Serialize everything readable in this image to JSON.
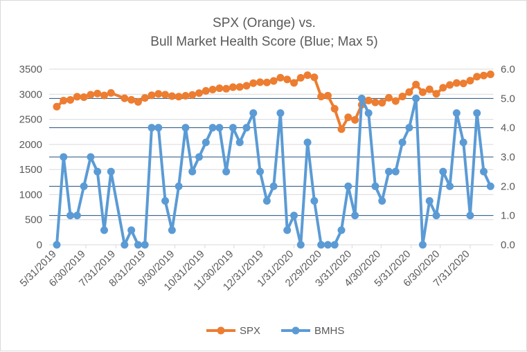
{
  "chart_data": {
    "type": "line",
    "title_lines": [
      "SPX (Orange) vs.",
      "Bull Market Health Score (Blue; Max 5)"
    ],
    "x_tick_labels": [
      "5/31/2019",
      "6/30/2019",
      "7/31/2019",
      "8/31/2019",
      "9/30/2019",
      "10/31/2019",
      "11/30/2019",
      "12/31/2019",
      "1/31/2020",
      "2/29/2020",
      "3/31/2020",
      "4/30/2020",
      "5/31/2020",
      "6/30/2020",
      "7/31/2020"
    ],
    "x_range": [
      "2019-05-31",
      "2020-08-24"
    ],
    "y_left": {
      "range": [
        0,
        3500
      ],
      "ticks": [
        "0",
        "500",
        "1000",
        "1500",
        "2000",
        "2500",
        "3000",
        "3500"
      ]
    },
    "y_right": {
      "range": [
        0,
        6
      ],
      "ticks": [
        "0.0",
        "1.0",
        "2.0",
        "3.0",
        "4.0",
        "5.0",
        "6.0"
      ]
    },
    "grid": true,
    "legend_position": "bottom",
    "x": [
      "2019-05-31",
      "2019-06-07",
      "2019-06-14",
      "2019-06-21",
      "2019-06-28",
      "2019-07-05",
      "2019-07-12",
      "2019-07-19",
      "2019-07-26",
      "2019-08-09",
      "2019-08-16",
      "2019-08-23",
      "2019-08-30",
      "2019-09-06",
      "2019-09-13",
      "2019-09-20",
      "2019-09-27",
      "2019-10-04",
      "2019-10-11",
      "2019-10-18",
      "2019-10-25",
      "2019-11-01",
      "2019-11-08",
      "2019-11-15",
      "2019-11-22",
      "2019-11-29",
      "2019-12-06",
      "2019-12-13",
      "2019-12-20",
      "2019-12-27",
      "2020-01-03",
      "2020-01-10",
      "2020-01-17",
      "2020-01-24",
      "2020-01-31",
      "2020-02-07",
      "2020-02-14",
      "2020-02-21",
      "2020-02-28",
      "2020-03-06",
      "2020-03-13",
      "2020-03-20",
      "2020-03-27",
      "2020-04-03",
      "2020-04-10",
      "2020-04-17",
      "2020-04-24",
      "2020-05-01",
      "2020-05-08",
      "2020-05-15",
      "2020-05-22",
      "2020-05-29",
      "2020-06-05",
      "2020-06-12",
      "2020-06-19",
      "2020-06-26",
      "2020-07-03",
      "2020-07-10",
      "2020-07-17",
      "2020-07-24",
      "2020-07-31",
      "2020-08-07",
      "2020-08-14",
      "2020-08-21"
    ],
    "series": [
      {
        "name": "SPX",
        "axis": "left",
        "color": "#ed7d31",
        "values": [
          2752,
          2873,
          2887,
          2950,
          2942,
          2990,
          3014,
          2977,
          3026,
          2919,
          2889,
          2847,
          2926,
          2979,
          3007,
          2992,
          2962,
          2952,
          2970,
          2986,
          3023,
          3067,
          3093,
          3120,
          3110,
          3141,
          3146,
          3169,
          3221,
          3240,
          3235,
          3265,
          3330,
          3295,
          3226,
          3328,
          3380,
          3338,
          2954,
          2972,
          2711,
          2305,
          2541,
          2489,
          2790,
          2875,
          2837,
          2831,
          2930,
          2864,
          2955,
          3044,
          3194,
          3041,
          3098,
          3009,
          3130,
          3185,
          3225,
          3216,
          3271,
          3351,
          3373,
          3397
        ]
      },
      {
        "name": "BMHS",
        "axis": "right",
        "color": "#5b9bd5",
        "values": [
          0,
          3,
          1,
          1,
          2,
          3,
          2.5,
          0.5,
          2.5,
          0,
          0.5,
          0,
          0,
          4,
          4,
          1.5,
          0.5,
          2,
          4,
          2.5,
          3,
          3.5,
          4,
          4,
          2.5,
          4,
          3.5,
          4,
          4.5,
          2.5,
          1.5,
          2,
          4.5,
          0.5,
          1,
          0,
          3.5,
          1.5,
          0,
          0,
          0,
          0.5,
          2,
          1,
          5,
          4.5,
          2,
          1.5,
          2.5,
          2.5,
          3.5,
          4,
          5,
          0,
          1.5,
          1,
          2.5,
          2,
          4.5,
          3.5,
          1,
          4.5,
          2.5,
          2
        ]
      }
    ]
  },
  "colors": {
    "left_grid": "#d9d9d9",
    "right_grid": "#1f4e79"
  }
}
